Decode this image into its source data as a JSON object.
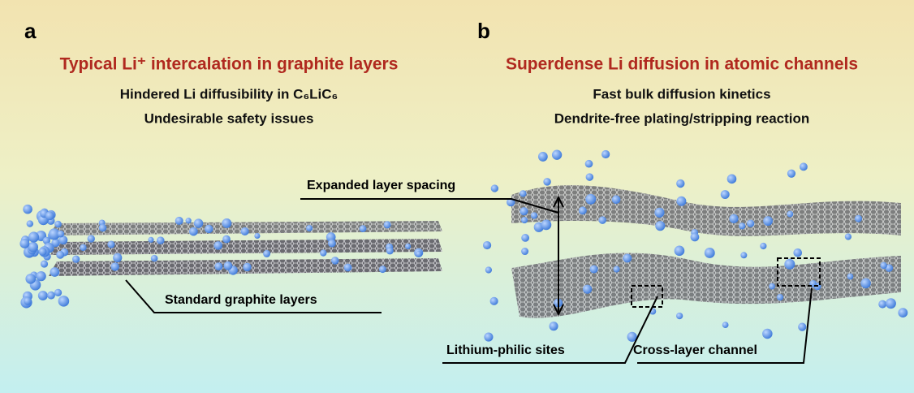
{
  "panels": [
    {
      "label": "a",
      "title": "Typical Li⁺ intercalation in graphite layers",
      "points": [
        "Hindered Li diffusibility in C₆LiC₆",
        "Undesirable safety issues"
      ],
      "annotations": [
        "Standard graphite layers"
      ]
    },
    {
      "label": "b",
      "title": "Superdense Li diffusion in atomic channels",
      "points": [
        "Fast bulk diffusion kinetics",
        "Dendrite-free plating/stripping reaction"
      ],
      "annotations": [
        "Expanded layer spacing",
        "Lithium-philic sites",
        "Cross-layer channel"
      ]
    }
  ]
}
